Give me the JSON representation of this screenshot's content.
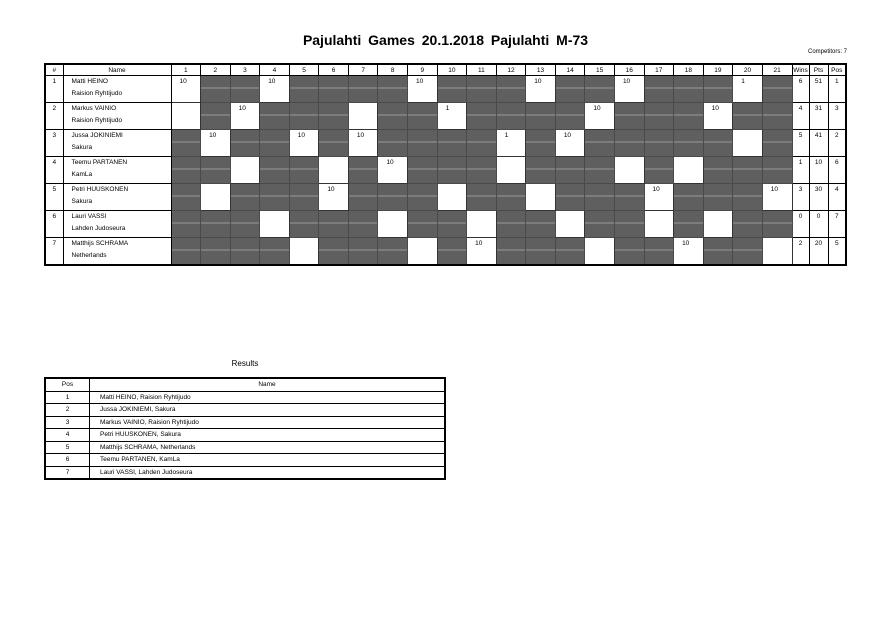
{
  "title": "Pajulahti Games  20.1.2018  Pajulahti   M-73",
  "competitors_label": "Competitors: 7",
  "pool": {
    "headers": {
      "idx": "#",
      "name": "Name",
      "wins": "Wins",
      "pts": "Pts",
      "pos": "Pos"
    },
    "rounds": [
      "1",
      "2",
      "3",
      "4",
      "5",
      "6",
      "7",
      "8",
      "9",
      "10",
      "11",
      "12",
      "13",
      "14",
      "15",
      "16",
      "17",
      "18",
      "19",
      "20",
      "21"
    ],
    "players": [
      {
        "idx": "1",
        "name": "Matti HEINO",
        "club": "Raision Ryhtijudo",
        "cells": {
          "1": "10",
          "4": "10",
          "9": "10",
          "13": "10",
          "16": "10",
          "20": "1"
        },
        "wins": "6",
        "pts": "51",
        "pos": "1"
      },
      {
        "idx": "2",
        "name": "Markus VAINIO",
        "club": "Raision Ryhtijudo",
        "cells": {
          "1": "",
          "3": "10",
          "7": "",
          "10": "1",
          "15": "10",
          "19": "10"
        },
        "wins": "4",
        "pts": "31",
        "pos": "3"
      },
      {
        "idx": "3",
        "name": "Jussa JOKINIEMI",
        "club": "Sakura",
        "cells": {
          "2": "10",
          "5": "10",
          "7": "10",
          "12": "1",
          "14": "10",
          "20": ""
        },
        "wins": "5",
        "pts": "41",
        "pos": "2"
      },
      {
        "idx": "4",
        "name": "Teemu PARTANEN",
        "club": "KamLa",
        "cells": {
          "3": "",
          "6": "",
          "8": "10",
          "12": "",
          "16": "",
          "18": ""
        },
        "wins": "1",
        "pts": "10",
        "pos": "6"
      },
      {
        "idx": "5",
        "name": "Petri HUUSKONEN",
        "club": "Sakura",
        "cells": {
          "2": "",
          "6": "10",
          "10": "",
          "13": "",
          "17": "10",
          "21": "10"
        },
        "wins": "3",
        "pts": "30",
        "pos": "4"
      },
      {
        "idx": "6",
        "name": "Lauri VASSI",
        "club": "Lahden Judoseura",
        "cells": {
          "4": "",
          "8": "",
          "11": "",
          "14": "",
          "17": "",
          "19": ""
        },
        "wins": "0",
        "pts": "0",
        "pos": "7"
      },
      {
        "idx": "7",
        "name": "Matthijs SCHRAMA",
        "club": "Netherlands",
        "cells": {
          "5": "",
          "9": "",
          "11": "10",
          "15": "",
          "18": "10",
          "21": ""
        },
        "wins": "2",
        "pts": "20",
        "pos": "5"
      }
    ]
  },
  "results": {
    "title": "Results",
    "headers": {
      "pos": "Pos",
      "name": "Name"
    },
    "rows": [
      {
        "pos": "1",
        "name": "Matti HEINO, Raision Ryhtijudo"
      },
      {
        "pos": "2",
        "name": "Jussa JOKINIEMI, Sakura"
      },
      {
        "pos": "3",
        "name": "Markus VAINIO, Raision Ryhtijudo"
      },
      {
        "pos": "4",
        "name": "Petri HUUSKONEN, Sakura"
      },
      {
        "pos": "5",
        "name": "Matthijs SCHRAMA, Netherlands"
      },
      {
        "pos": "6",
        "name": "Teemu PARTANEN, KamLa"
      },
      {
        "pos": "7",
        "name": "Lauri VASSI, Lahden Judoseura"
      }
    ]
  }
}
